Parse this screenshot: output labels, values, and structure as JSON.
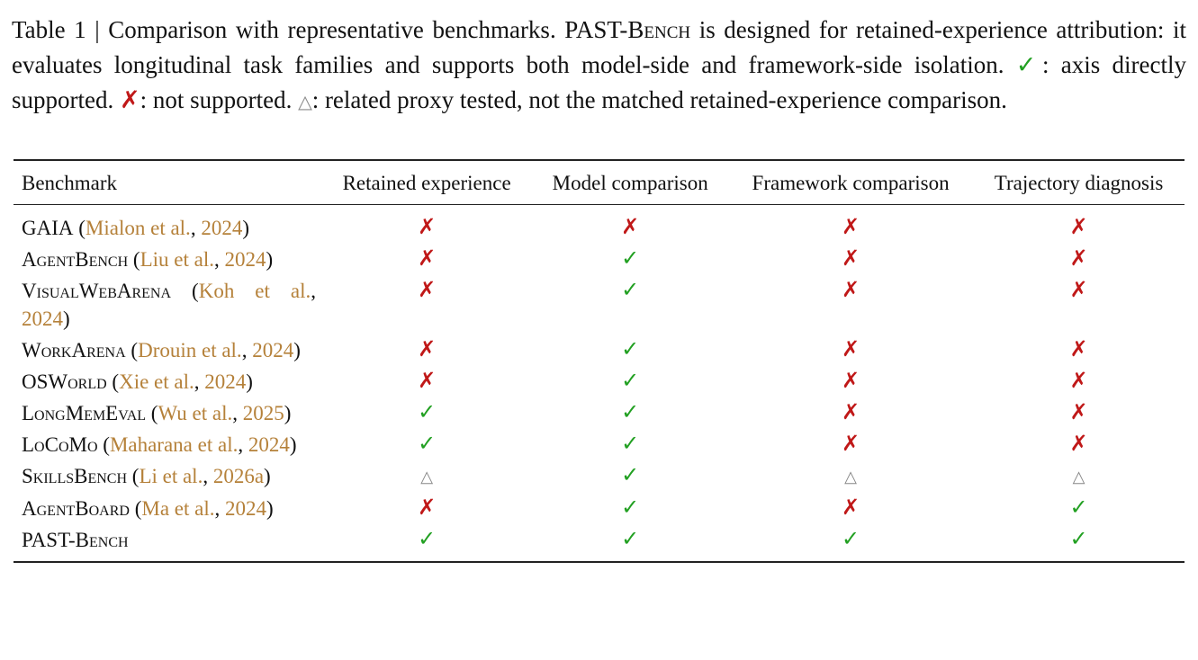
{
  "caption": {
    "parts": [
      "Table 1 | Comparison with representative benchmarks. ",
      "PAST-Bench",
      " is designed for retained-experience attribution: it evaluates longitudinal task families and supports both model-side and framework-side isolation. ",
      "✓",
      ": axis directly supported. ",
      "✗",
      ": not supported. ",
      "△",
      ": related proxy tested, not the matched retained-experience comparison."
    ]
  },
  "table": {
    "header": [
      "Benchmark",
      "Retained experience",
      "Model comparison",
      "Framework comparison",
      "Trajectory diagnosis"
    ],
    "rows": [
      {
        "label": [
          "GAIA",
          " (",
          "Mialon et al.",
          ", ",
          "2024",
          ")"
        ],
        "cells": [
          "✗",
          "✗",
          "✗",
          "✗"
        ]
      },
      {
        "label": [
          "AgentBench",
          " (",
          "Liu et al.",
          ", ",
          "2024",
          ")"
        ],
        "cells": [
          "✗",
          "✓",
          "✗",
          "✗"
        ]
      },
      {
        "label": [
          "VisualWebArena",
          " (",
          "Koh et al.",
          ", ",
          "2024",
          ")"
        ],
        "cells": [
          "✗",
          "✓",
          "✗",
          "✗"
        ]
      },
      {
        "label": [
          "WorkArena",
          " (",
          "Drouin et al.",
          ", ",
          "2024",
          ")"
        ],
        "cells": [
          "✗",
          "✓",
          "✗",
          "✗"
        ]
      },
      {
        "label": [
          "OSWorld",
          " (",
          "Xie et al.",
          ", ",
          "2024",
          ")"
        ],
        "cells": [
          "✗",
          "✓",
          "✗",
          "✗"
        ]
      },
      {
        "label": [
          "LongMemEval",
          " (",
          "Wu et al.",
          ", ",
          "2025",
          ")"
        ],
        "cells": [
          "✓",
          "✓",
          "✗",
          "✗"
        ]
      },
      {
        "label": [
          "LoCoMo",
          " (",
          "Maharana et al.",
          ", ",
          "2024",
          ")"
        ],
        "cells": [
          "✓",
          "✓",
          "✗",
          "✗"
        ]
      },
      {
        "label": [
          "SkillsBench",
          " (",
          "Li et al.",
          ", ",
          "2026a",
          ")"
        ],
        "cells": [
          "△",
          "✓",
          "△",
          "△"
        ]
      },
      {
        "label": [
          "AgentBoard",
          " (",
          "Ma et al.",
          ", ",
          "2024",
          ")"
        ],
        "cells": [
          "✗",
          "✓",
          "✗",
          "✓"
        ]
      },
      {
        "label": [
          "PAST-Bench"
        ],
        "cells": [
          "✓",
          "✓",
          "✓",
          "✓"
        ]
      }
    ]
  }
}
